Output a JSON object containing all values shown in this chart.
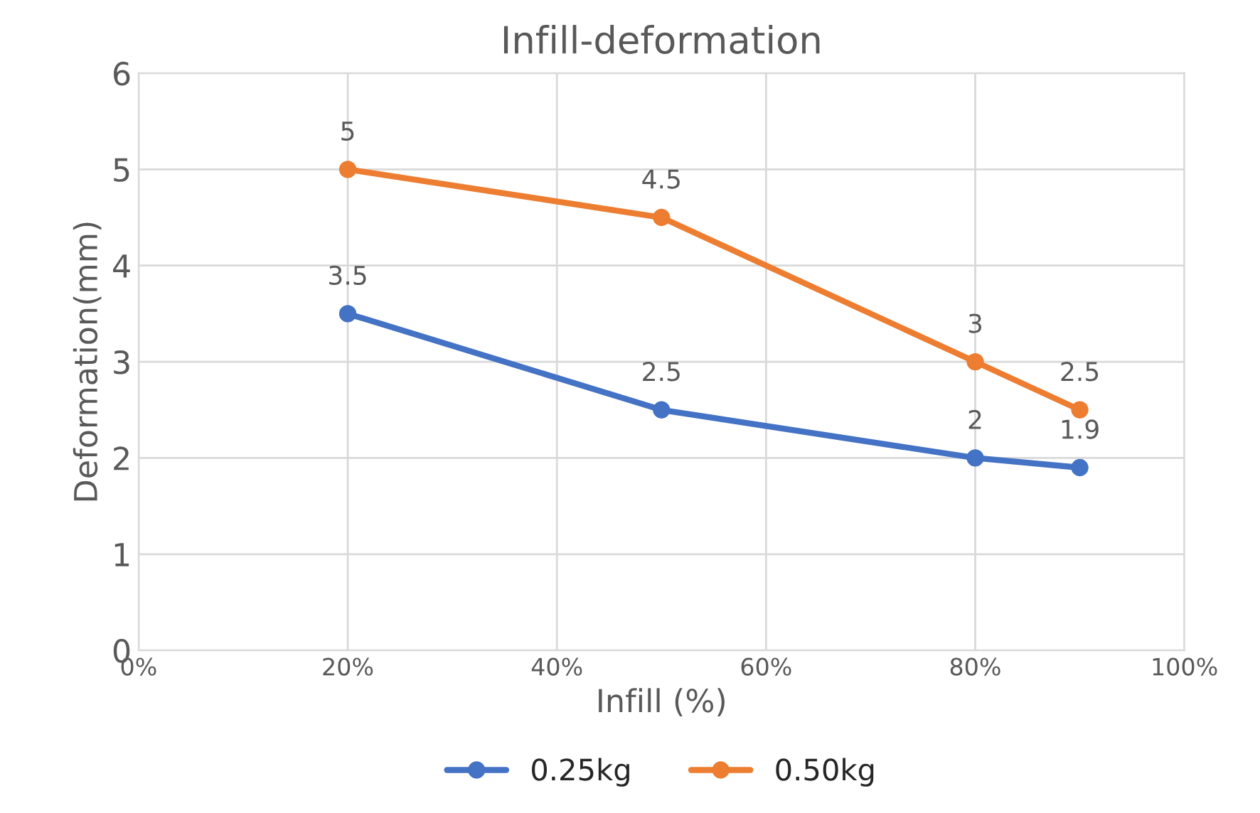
{
  "chart_data": {
    "type": "line",
    "title": "Infill-deformation",
    "xlabel": "Infill (%)",
    "ylabel": "Deformation(mm)",
    "x": [
      20,
      50,
      80,
      90
    ],
    "series": [
      {
        "name": "0.25kg",
        "color": "#4472c4",
        "values": [
          3.5,
          2.5,
          2,
          1.9
        ]
      },
      {
        "name": "0.50kg",
        "color": "#ed7d31",
        "values": [
          5,
          4.5,
          3,
          2.5
        ]
      }
    ],
    "xlim": [
      0,
      100
    ],
    "xticks": [
      {
        "value": 0,
        "label": "0%"
      },
      {
        "value": 20,
        "label": "20%"
      },
      {
        "value": 40,
        "label": "40%"
      },
      {
        "value": 60,
        "label": "60%"
      },
      {
        "value": 80,
        "label": "80%"
      },
      {
        "value": 100,
        "label": "100%"
      }
    ],
    "ylim": [
      0,
      6
    ],
    "yticks": [
      0,
      1,
      2,
      3,
      4,
      5,
      6
    ],
    "grid": true,
    "legend": "bottom",
    "marker": "circle",
    "line_style": "solid",
    "data_labels": true
  }
}
